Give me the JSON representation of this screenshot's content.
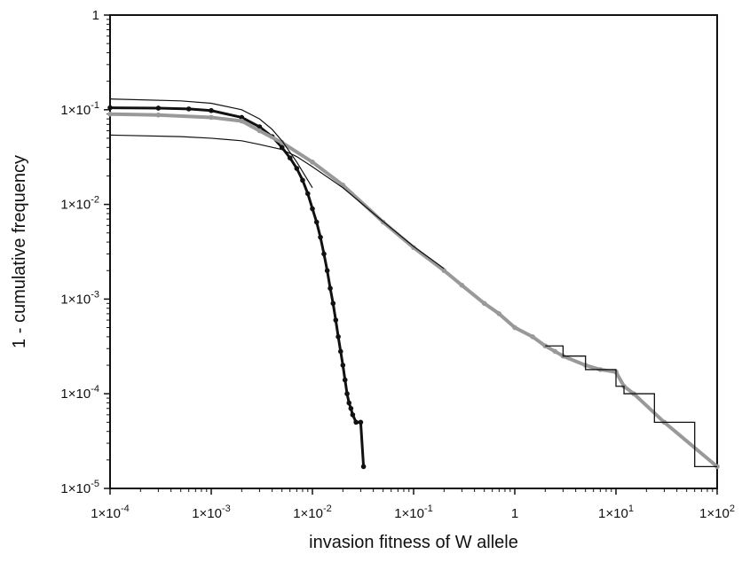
{
  "chart_data": {
    "type": "scatter",
    "title": "",
    "xlabel": "invasion fitness of W allele",
    "ylabel": "1 - cumulative frequency",
    "x_scale": "log",
    "y_scale": "log",
    "xlim": [
      0.0001,
      100
    ],
    "ylim": [
      1e-05,
      1
    ],
    "x_tick_labels": [
      "1x10^-4",
      "1x10^-3",
      "1x10^-2",
      "1x10^-1",
      "1",
      "1x10^1",
      "1x10^2"
    ],
    "y_tick_labels": [
      "1x10^-5",
      "1x10^-4",
      "1x10^-3",
      "1x10^-2",
      "1x10^-1",
      "1"
    ],
    "grid": false,
    "legend": "none",
    "colors": {
      "black_series": "#111111",
      "gray_series": "#999999",
      "fit_lines": "#111111"
    },
    "series": [
      {
        "style": "black-dots",
        "x": [
          0.0001,
          0.0003,
          0.0006,
          0.001,
          0.002,
          0.003,
          0.004,
          0.005,
          0.006,
          0.007,
          0.008,
          0.009,
          0.01,
          0.011,
          0.012,
          0.013,
          0.014,
          0.015,
          0.016,
          0.017,
          0.018,
          0.019,
          0.02,
          0.021,
          0.022,
          0.023,
          0.024,
          0.025,
          0.027,
          0.03,
          0.032
        ],
        "y": [
          0.105,
          0.104,
          0.102,
          0.098,
          0.083,
          0.066,
          0.052,
          0.04,
          0.031,
          0.024,
          0.018,
          0.013,
          0.009,
          0.0065,
          0.0045,
          0.003,
          0.002,
          0.0013,
          0.0009,
          0.0006,
          0.0004,
          0.00028,
          0.0002,
          0.00014,
          0.0001,
          8e-05,
          7e-05,
          6e-05,
          5e-05,
          5e-05,
          1.7e-05
        ]
      },
      {
        "style": "gray-dots",
        "x": [
          0.0001,
          0.0003,
          0.001,
          0.002,
          0.003,
          0.005,
          0.01,
          0.02,
          0.05,
          0.1,
          0.2,
          0.3,
          0.5,
          0.7,
          1.0,
          1.5,
          2.0,
          2.5,
          3.0,
          5.0,
          7.0,
          10.0,
          12.0,
          15.0,
          30.0,
          100.0
        ],
        "y": [
          0.09,
          0.088,
          0.083,
          0.076,
          0.06,
          0.045,
          0.028,
          0.016,
          0.0065,
          0.0035,
          0.002,
          0.0014,
          0.0009,
          0.0007,
          0.0005,
          0.0004,
          0.00032,
          0.00028,
          0.00025,
          0.0002,
          0.00018,
          0.00017,
          0.00012,
          0.0001,
          5e-05,
          1.7e-05
        ]
      },
      {
        "style": "fit-line",
        "x": [
          0.0001,
          0.0005,
          0.001,
          0.002,
          0.003,
          0.004,
          0.005,
          0.007,
          0.01
        ],
        "y": [
          0.13,
          0.124,
          0.117,
          0.1,
          0.08,
          0.062,
          0.047,
          0.028,
          0.015
        ]
      },
      {
        "style": "fit-line",
        "x": [
          0.0001,
          0.0005,
          0.001,
          0.002,
          0.003,
          0.005,
          0.007,
          0.01,
          0.02,
          0.05,
          0.1,
          0.2
        ],
        "y": [
          0.054,
          0.052,
          0.05,
          0.047,
          0.043,
          0.038,
          0.032,
          0.025,
          0.015,
          0.0066,
          0.0036,
          0.0021
        ]
      },
      {
        "style": "step-line",
        "x": [
          2.0,
          3.0,
          3.0,
          5.0,
          5.0,
          10.0,
          10.0,
          12.0,
          12.0,
          24.0,
          24.0,
          60.0,
          60.0,
          100.0
        ],
        "y": [
          0.00032,
          0.00032,
          0.00025,
          0.00025,
          0.00018,
          0.00018,
          0.00012,
          0.00012,
          0.0001,
          0.0001,
          5e-05,
          5e-05,
          1.7e-05,
          1.7e-05
        ]
      }
    ]
  }
}
